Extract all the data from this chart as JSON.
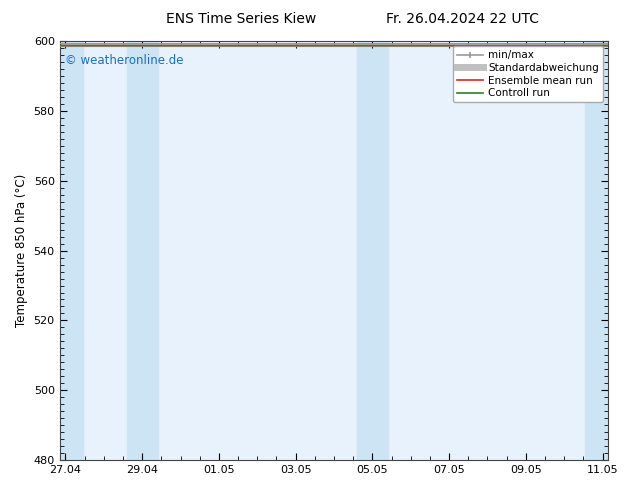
{
  "title": "ENS Time Series Kiew",
  "title_right": "Fr. 26.04.2024 22 UTC",
  "ylabel": "Temperature 850 hPa (°C)",
  "ylim": [
    480,
    600
  ],
  "yticks": [
    480,
    500,
    520,
    540,
    560,
    580,
    600
  ],
  "xtick_labels": [
    "27.04",
    "29.04",
    "01.05",
    "03.05",
    "05.05",
    "07.05",
    "09.05",
    "11.05"
  ],
  "xtick_positions": [
    0,
    2,
    4,
    6,
    8,
    10,
    12,
    14
  ],
  "watermark": "© weatheronline.de",
  "watermark_color": "#1a6fbd",
  "bg_color": "#ffffff",
  "plot_bg_color": "#e8f2fc",
  "shaded_bands": [
    {
      "x_start": -0.15,
      "x_end": 0.45
    },
    {
      "x_start": 1.6,
      "x_end": 2.4
    },
    {
      "x_start": 7.6,
      "x_end": 8.4
    },
    {
      "x_start": 13.55,
      "x_end": 14.15
    }
  ],
  "band_color": "#cde4f5",
  "data_y_value": 599.0,
  "xmin": -0.15,
  "xmax": 14.15,
  "legend_fontsize": 7.5,
  "title_fontsize": 10,
  "ylabel_fontsize": 8.5
}
